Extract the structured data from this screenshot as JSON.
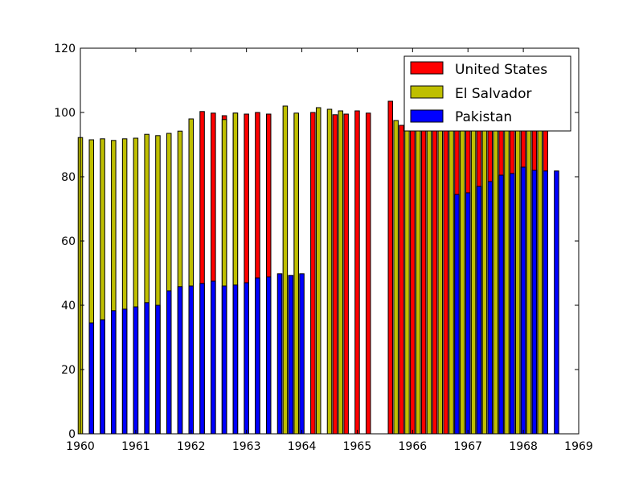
{
  "chart_data": {
    "type": "bar",
    "title": "",
    "xlabel": "",
    "ylabel": "",
    "xlim": [
      1960,
      1969
    ],
    "ylim": [
      0,
      120
    ],
    "grid": false,
    "legend_position": "top-right",
    "x_ticks": [
      "1960",
      "1961",
      "1962",
      "1963",
      "1964",
      "1965",
      "1966",
      "1967",
      "1968",
      "1969"
    ],
    "y_ticks": [
      "0",
      "20",
      "40",
      "60",
      "80",
      "100",
      "120"
    ],
    "bar_width_years": 0.08,
    "series": [
      {
        "name": "United States",
        "color": "#ff0000",
        "x": [
          1962.2,
          1962.4,
          1962.6,
          1962.8,
          1963.0,
          1963.2,
          1963.4,
          1963.9,
          1964.2,
          1964.6,
          1964.8,
          1965.0,
          1965.2,
          1965.6,
          1965.8,
          1966.0,
          1966.2,
          1966.4,
          1966.6,
          1966.8,
          1967.0,
          1967.2,
          1967.4,
          1967.6,
          1967.8,
          1968.0,
          1968.2,
          1968.4
        ],
        "values": [
          100.3,
          99.8,
          99.0,
          99.8,
          99.5,
          100.0,
          99.5,
          99.5,
          100.0,
          99.3,
          99.5,
          100.5,
          99.8,
          103.5,
          96.0,
          96.0,
          96.0,
          96.0,
          96.0,
          96.0,
          96.0,
          96.0,
          96.0,
          96.0,
          96.0,
          96.0,
          96.0,
          96.0
        ]
      },
      {
        "name": "El Salvador",
        "color": "#bfbf00",
        "x": [
          1960.0,
          1960.2,
          1960.4,
          1960.6,
          1960.8,
          1961.0,
          1961.2,
          1961.4,
          1961.6,
          1961.8,
          1962.0,
          1962.6,
          1962.8,
          1963.7,
          1963.9,
          1964.3,
          1964.5,
          1964.7,
          1965.7,
          1965.9,
          1966.1,
          1966.3,
          1966.5,
          1966.7,
          1966.9,
          1967.1,
          1967.3,
          1967.5,
          1967.7,
          1967.9,
          1968.1,
          1968.3
        ],
        "values": [
          92.2,
          91.5,
          91.8,
          91.3,
          91.8,
          92.0,
          93.2,
          92.8,
          93.5,
          94.2,
          98.0,
          97.8,
          99.8,
          102.0,
          99.8,
          101.5,
          101.0,
          100.5,
          97.5,
          96.0,
          96.0,
          96.0,
          96.0,
          96.0,
          96.0,
          96.0,
          96.0,
          96.0,
          96.0,
          96.0,
          96.0,
          96.0
        ]
      },
      {
        "name": "Pakistan",
        "color": "#0000ff",
        "x": [
          1960.2,
          1960.4,
          1960.6,
          1960.8,
          1961.0,
          1961.2,
          1961.4,
          1961.6,
          1961.8,
          1962.0,
          1962.2,
          1962.4,
          1962.6,
          1962.8,
          1963.0,
          1963.2,
          1963.4,
          1963.6,
          1963.8,
          1964.0,
          1966.8,
          1967.0,
          1967.2,
          1967.4,
          1967.6,
          1967.8,
          1968.0,
          1968.2,
          1968.4,
          1968.6
        ],
        "values": [
          34.5,
          35.5,
          38.3,
          38.8,
          39.5,
          40.8,
          40.0,
          44.5,
          45.8,
          46.0,
          46.8,
          47.5,
          46.0,
          46.3,
          47.0,
          48.5,
          48.8,
          49.8,
          49.3,
          49.8,
          74.5,
          75.0,
          77.0,
          78.5,
          80.5,
          81.0,
          83.0,
          82.0,
          81.8,
          81.8
        ]
      }
    ]
  }
}
